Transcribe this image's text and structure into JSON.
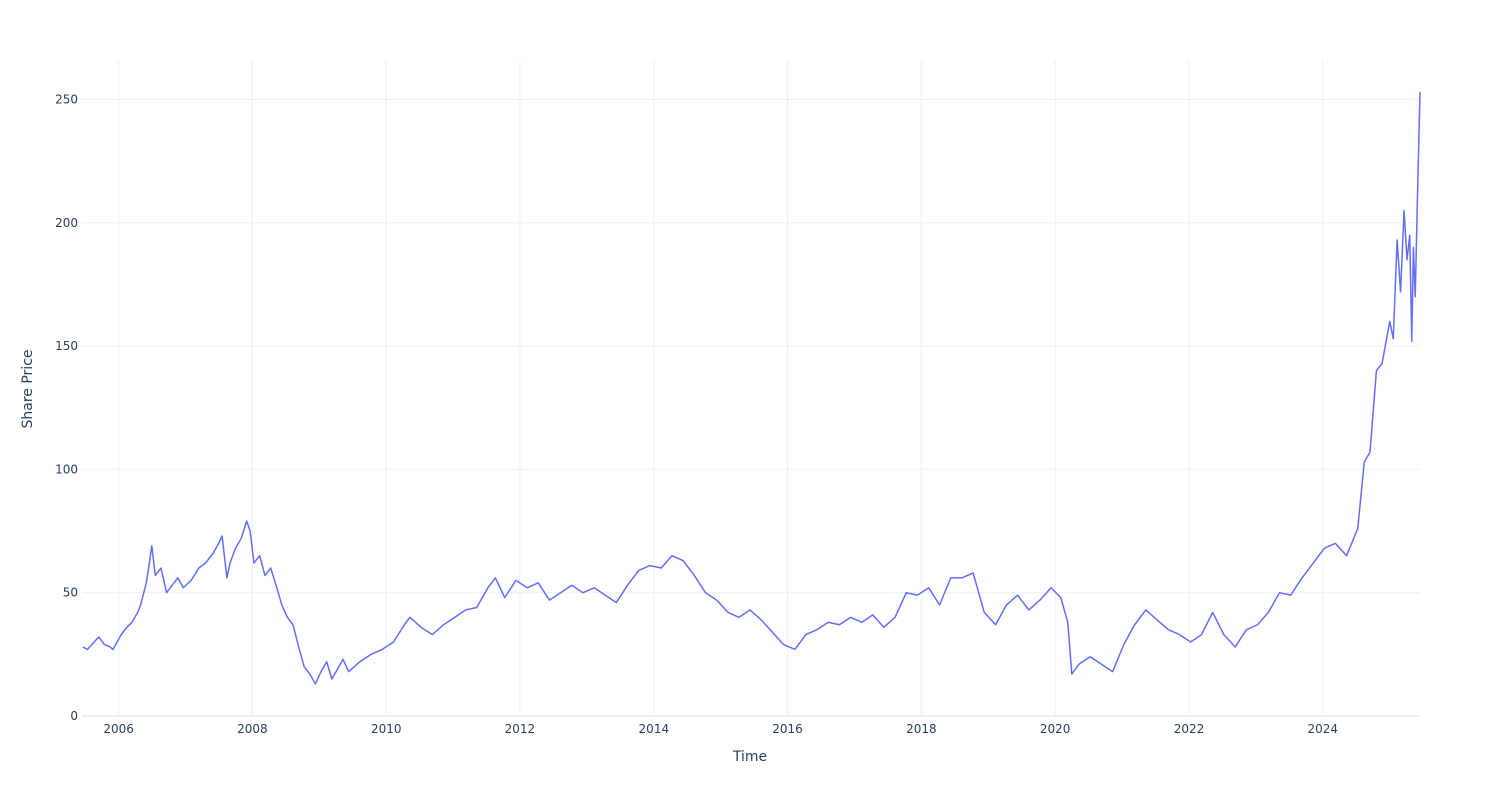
{
  "chart_data": {
    "type": "line",
    "title": "",
    "xlabel": "Time",
    "ylabel": "Share Price",
    "x_ticks": [
      "2006",
      "2008",
      "2010",
      "2012",
      "2014",
      "2016",
      "2018",
      "2020",
      "2022",
      "2024"
    ],
    "y_ticks": [
      "0",
      "50",
      "100",
      "150",
      "200",
      "250"
    ],
    "xlim": [
      "2005-06-15",
      "2025-06-15"
    ],
    "ylim": [
      0,
      266
    ],
    "grid": true,
    "legend": "none",
    "series": [
      {
        "color": "#636efa",
        "points": [
          [
            "2005-06-20",
            28
          ],
          [
            "2005-07-15",
            27
          ],
          [
            "2005-08-20",
            30
          ],
          [
            "2005-09-15",
            32
          ],
          [
            "2005-10-15",
            29
          ],
          [
            "2005-11-15",
            28
          ],
          [
            "2005-12-01",
            27
          ],
          [
            "2006-01-15",
            33
          ],
          [
            "2006-02-15",
            36
          ],
          [
            "2006-03-15",
            38
          ],
          [
            "2006-04-15",
            42
          ],
          [
            "2006-05-01",
            45
          ],
          [
            "2006-06-01",
            54
          ],
          [
            "2006-06-20",
            63
          ],
          [
            "2006-07-01",
            69
          ],
          [
            "2006-07-20",
            57
          ],
          [
            "2006-08-20",
            60
          ],
          [
            "2006-09-20",
            50
          ],
          [
            "2006-10-20",
            53
          ],
          [
            "2006-11-20",
            56
          ],
          [
            "2006-12-20",
            52
          ],
          [
            "2007-02-01",
            55
          ],
          [
            "2007-03-15",
            60
          ],
          [
            "2007-04-20",
            62
          ],
          [
            "2007-06-01",
            66
          ],
          [
            "2007-07-01",
            70
          ],
          [
            "2007-07-20",
            73
          ],
          [
            "2007-08-15",
            56
          ],
          [
            "2007-09-01",
            62
          ],
          [
            "2007-10-01",
            68
          ],
          [
            "2007-11-01",
            72
          ],
          [
            "2007-12-01",
            79
          ],
          [
            "2007-12-20",
            75
          ],
          [
            "2008-01-10",
            62
          ],
          [
            "2008-02-10",
            65
          ],
          [
            "2008-03-10",
            57
          ],
          [
            "2008-04-10",
            60
          ],
          [
            "2008-05-10",
            53
          ],
          [
            "2008-06-10",
            45
          ],
          [
            "2008-07-10",
            40
          ],
          [
            "2008-08-10",
            37
          ],
          [
            "2008-09-10",
            28
          ],
          [
            "2008-10-10",
            20
          ],
          [
            "2008-11-10",
            17
          ],
          [
            "2008-12-10",
            13
          ],
          [
            "2009-01-10",
            18
          ],
          [
            "2009-02-10",
            22
          ],
          [
            "2009-03-10",
            15
          ],
          [
            "2009-04-10",
            19
          ],
          [
            "2009-05-10",
            23
          ],
          [
            "2009-06-10",
            18
          ],
          [
            "2009-08-10",
            22
          ],
          [
            "2009-10-10",
            25
          ],
          [
            "2009-12-10",
            27
          ],
          [
            "2010-02-10",
            30
          ],
          [
            "2010-04-10",
            37
          ],
          [
            "2010-05-10",
            40
          ],
          [
            "2010-07-10",
            36
          ],
          [
            "2010-09-10",
            33
          ],
          [
            "2010-11-10",
            37
          ],
          [
            "2011-01-10",
            40
          ],
          [
            "2011-03-10",
            43
          ],
          [
            "2011-05-10",
            44
          ],
          [
            "2011-07-10",
            52
          ],
          [
            "2011-08-20",
            56
          ],
          [
            "2011-10-10",
            48
          ],
          [
            "2011-12-10",
            55
          ],
          [
            "2012-02-10",
            52
          ],
          [
            "2012-04-10",
            54
          ],
          [
            "2012-06-10",
            47
          ],
          [
            "2012-08-10",
            50
          ],
          [
            "2012-10-10",
            53
          ],
          [
            "2012-12-10",
            50
          ],
          [
            "2013-02-10",
            52
          ],
          [
            "2013-04-10",
            49
          ],
          [
            "2013-06-10",
            46
          ],
          [
            "2013-08-10",
            53
          ],
          [
            "2013-10-10",
            59
          ],
          [
            "2013-12-10",
            61
          ],
          [
            "2014-02-10",
            60
          ],
          [
            "2014-04-10",
            65
          ],
          [
            "2014-06-10",
            63
          ],
          [
            "2014-08-10",
            57
          ],
          [
            "2014-10-10",
            50
          ],
          [
            "2014-12-10",
            47
          ],
          [
            "2015-02-10",
            42
          ],
          [
            "2015-04-10",
            40
          ],
          [
            "2015-06-10",
            43
          ],
          [
            "2015-08-10",
            39
          ],
          [
            "2015-10-10",
            34
          ],
          [
            "2015-12-10",
            29
          ],
          [
            "2016-02-10",
            27
          ],
          [
            "2016-04-10",
            33
          ],
          [
            "2016-06-10",
            35
          ],
          [
            "2016-08-10",
            38
          ],
          [
            "2016-10-10",
            37
          ],
          [
            "2016-12-10",
            40
          ],
          [
            "2017-02-10",
            38
          ],
          [
            "2017-04-10",
            41
          ],
          [
            "2017-06-10",
            36
          ],
          [
            "2017-08-10",
            40
          ],
          [
            "2017-10-10",
            50
          ],
          [
            "2017-12-10",
            49
          ],
          [
            "2018-02-10",
            52
          ],
          [
            "2018-04-10",
            45
          ],
          [
            "2018-06-10",
            56
          ],
          [
            "2018-08-10",
            56
          ],
          [
            "2018-10-10",
            58
          ],
          [
            "2018-12-10",
            42
          ],
          [
            "2019-02-10",
            37
          ],
          [
            "2019-04-10",
            45
          ],
          [
            "2019-06-10",
            49
          ],
          [
            "2019-08-10",
            43
          ],
          [
            "2019-10-10",
            47
          ],
          [
            "2019-12-10",
            52
          ],
          [
            "2020-02-01",
            48
          ],
          [
            "2020-03-10",
            38
          ],
          [
            "2020-04-01",
            17
          ],
          [
            "2020-05-10",
            21
          ],
          [
            "2020-07-10",
            24
          ],
          [
            "2020-09-10",
            21
          ],
          [
            "2020-11-10",
            18
          ],
          [
            "2021-01-10",
            29
          ],
          [
            "2021-03-10",
            37
          ],
          [
            "2021-05-10",
            43
          ],
          [
            "2021-07-10",
            39
          ],
          [
            "2021-09-10",
            35
          ],
          [
            "2021-11-10",
            33
          ],
          [
            "2022-01-10",
            30
          ],
          [
            "2022-03-10",
            33
          ],
          [
            "2022-05-10",
            42
          ],
          [
            "2022-07-10",
            33
          ],
          [
            "2022-09-10",
            28
          ],
          [
            "2022-11-10",
            35
          ],
          [
            "2023-01-10",
            37
          ],
          [
            "2023-03-10",
            42
          ],
          [
            "2023-05-10",
            50
          ],
          [
            "2023-07-10",
            49
          ],
          [
            "2023-09-10",
            56
          ],
          [
            "2023-11-10",
            62
          ],
          [
            "2024-01-10",
            68
          ],
          [
            "2024-03-10",
            70
          ],
          [
            "2024-05-10",
            65
          ],
          [
            "2024-07-10",
            76
          ],
          [
            "2024-08-15",
            103
          ],
          [
            "2024-09-15",
            107
          ],
          [
            "2024-10-20",
            140
          ],
          [
            "2024-11-20",
            143
          ],
          [
            "2025-01-01",
            160
          ],
          [
            "2025-01-20",
            153
          ],
          [
            "2025-02-10",
            193
          ],
          [
            "2025-03-01",
            172
          ],
          [
            "2025-03-20",
            205
          ],
          [
            "2025-04-05",
            185
          ],
          [
            "2025-04-20",
            195
          ],
          [
            "2025-05-01",
            152
          ],
          [
            "2025-05-10",
            190
          ],
          [
            "2025-05-20",
            170
          ],
          [
            "2025-06-01",
            210
          ],
          [
            "2025-06-15",
            253
          ]
        ]
      }
    ]
  }
}
